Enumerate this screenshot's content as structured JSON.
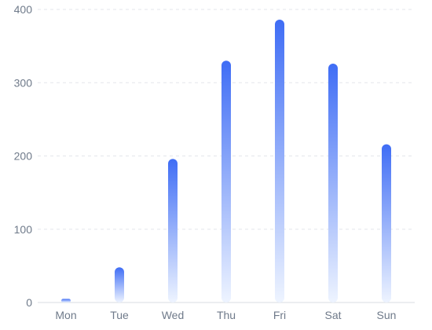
{
  "chart_data": {
    "type": "bar",
    "title": "",
    "xlabel": "",
    "ylabel": "",
    "categories": [
      "Mon",
      "Tue",
      "Wed",
      "Thu",
      "Fri",
      "Sat",
      "Sun"
    ],
    "values": [
      5,
      48,
      196,
      330,
      386,
      326,
      216
    ],
    "ylim": [
      0,
      400
    ],
    "yticks": [
      0,
      100,
      200,
      300,
      400
    ],
    "grid": true,
    "legend": "none",
    "colors": {
      "bar_top": "#3f6df5",
      "bar_bottom": "#eef4ff",
      "grid": "#e3e6eb",
      "tick_label": "#6f7a8a"
    }
  }
}
